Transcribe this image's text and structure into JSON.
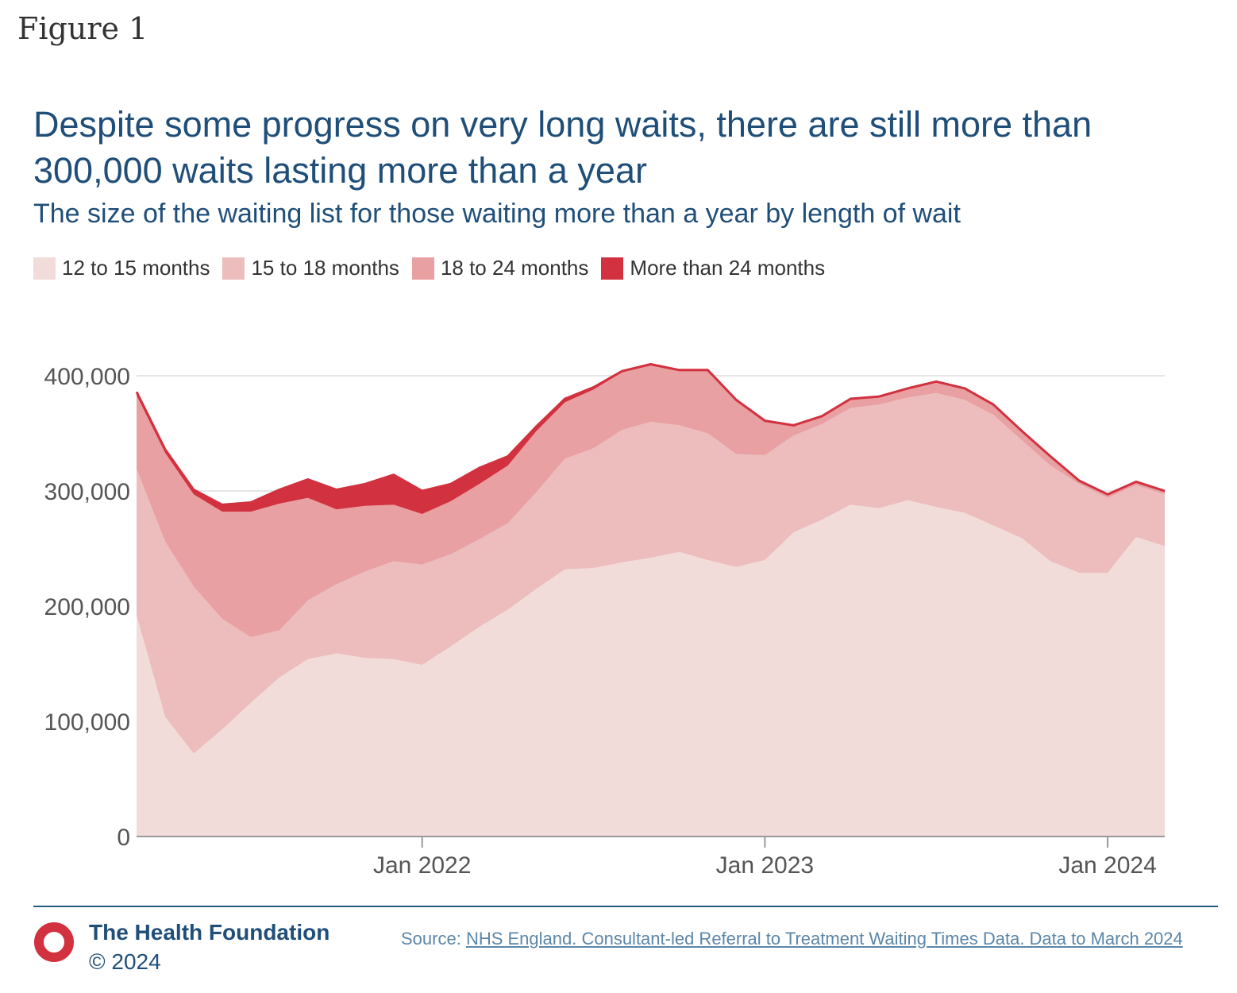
{
  "figure_label": "Figure 1",
  "chart_data": {
    "type": "area",
    "stacked": true,
    "title": "Despite some progress on very long waits, there are still more than 300,000 waits lasting more than a year",
    "subtitle": "The size of the waiting list for those waiting more than a year by length of wait",
    "xlabel": "",
    "ylabel": "",
    "ylim": [
      0,
      400000
    ],
    "y_ticks": [
      0,
      100000,
      200000,
      300000,
      400000
    ],
    "y_tick_labels": [
      "0",
      "100,000",
      "200,000",
      "300,000",
      "400,000"
    ],
    "x_ticks": [
      "2022-01",
      "2023-01",
      "2024-01"
    ],
    "x_tick_labels": [
      "Jan 2022",
      "Jan 2023",
      "Jan 2024"
    ],
    "grid": "horizontal",
    "legend": "top-left",
    "x": [
      "2021-03",
      "2021-04",
      "2021-05",
      "2021-06",
      "2021-07",
      "2021-08",
      "2021-09",
      "2021-10",
      "2021-11",
      "2021-12",
      "2022-01",
      "2022-02",
      "2022-03",
      "2022-04",
      "2022-05",
      "2022-06",
      "2022-07",
      "2022-08",
      "2022-09",
      "2022-10",
      "2022-11",
      "2022-12",
      "2023-01",
      "2023-02",
      "2023-03",
      "2023-04",
      "2023-05",
      "2023-06",
      "2023-07",
      "2023-08",
      "2023-09",
      "2023-10",
      "2023-11",
      "2023-12",
      "2024-01",
      "2024-02",
      "2024-03"
    ],
    "series": [
      {
        "name": "12 to 15 months",
        "color": "#f2dcd9",
        "values": [
          192000,
          104000,
          72000,
          93000,
          116000,
          138000,
          154000,
          159000,
          155000,
          154000,
          149000,
          165000,
          182000,
          197000,
          215000,
          232000,
          233000,
          238000,
          242000,
          247000,
          240000,
          234000,
          240000,
          264000,
          275000,
          288000,
          285000,
          292000,
          286000,
          281000,
          270000,
          259000,
          239000,
          229000,
          229000,
          260000,
          252000
        ]
      },
      {
        "name": "15 to 18 months",
        "color": "#ecbdbc",
        "values": [
          127000,
          152000,
          145000,
          96000,
          57000,
          41000,
          51000,
          60000,
          75000,
          85000,
          87000,
          80000,
          76000,
          75000,
          84000,
          96000,
          104000,
          115000,
          118000,
          110000,
          110000,
          98000,
          91000,
          84000,
          83000,
          84000,
          90000,
          89000,
          99000,
          98000,
          96000,
          85000,
          83000,
          77000,
          65000,
          45000,
          45000
        ]
      },
      {
        "name": "18 to 24 months",
        "color": "#e8a0a2",
        "values": [
          64000,
          77000,
          80000,
          93000,
          109000,
          110000,
          89000,
          65000,
          57000,
          49000,
          44000,
          46000,
          48000,
          50000,
          53000,
          49000,
          51000,
          50000,
          49000,
          47000,
          54000,
          46000,
          29000,
          8000,
          6000,
          7000,
          6000,
          7000,
          9000,
          9000,
          8000,
          7000,
          7000,
          2000,
          2000,
          2000,
          2000
        ]
      },
      {
        "name": "More than 24 months",
        "color": "#d2313f",
        "values": [
          3000,
          3000,
          4000,
          6000,
          8000,
          12000,
          16000,
          17000,
          19000,
          26000,
          20000,
          15000,
          14000,
          8000,
          4000,
          3000,
          2000,
          1000,
          1000,
          1000,
          1000,
          1000,
          1000,
          1000,
          1000,
          1000,
          1000,
          1000,
          1000,
          1000,
          1000,
          1000,
          1000,
          1000,
          1000,
          1000,
          1000
        ]
      }
    ]
  },
  "footer": {
    "organisation": "The Health Foundation",
    "copyright": "© 2024",
    "source_prefix": "Source: ",
    "source_link_text": "NHS England. Consultant-led Referral to Treatment Waiting Times Data. Data to March 2024"
  }
}
